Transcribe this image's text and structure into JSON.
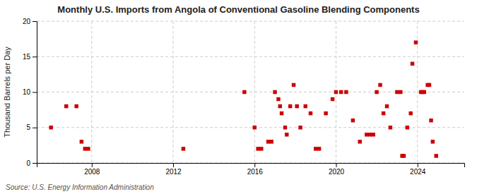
{
  "chart_data": {
    "type": "scatter",
    "title": "Monthly U.S. Imports from Angola of Conventional Gasoline Blending Components",
    "ylabel": "Thousand Barrels per Day",
    "annotation": "Source: U.S. Energy Information Administration",
    "x": [
      2006.0,
      2006.75,
      2007.25,
      2007.5,
      2007.67,
      2007.83,
      2012.5,
      2015.5,
      2016.0,
      2016.17,
      2016.33,
      2016.67,
      2016.83,
      2017.0,
      2017.17,
      2017.25,
      2017.33,
      2017.5,
      2017.58,
      2017.75,
      2017.92,
      2018.08,
      2018.25,
      2018.5,
      2018.75,
      2019.0,
      2019.17,
      2019.5,
      2019.83,
      2020.0,
      2020.25,
      2020.5,
      2020.83,
      2021.17,
      2021.5,
      2021.67,
      2021.83,
      2022.0,
      2022.17,
      2022.33,
      2022.5,
      2022.67,
      2023.0,
      2023.17,
      2023.25,
      2023.33,
      2023.5,
      2023.67,
      2023.75,
      2023.92,
      2024.17,
      2024.25,
      2024.33,
      2024.5,
      2024.58,
      2024.67,
      2024.75,
      2024.92
    ],
    "values": [
      5,
      8,
      8,
      3,
      2,
      2,
      2,
      10,
      5,
      2,
      2,
      3,
      3,
      10,
      9,
      8,
      7,
      5,
      4,
      8,
      11,
      8,
      5,
      8,
      7,
      2,
      2,
      7,
      9,
      10,
      10,
      10,
      6,
      3,
      4,
      4,
      4,
      10,
      11,
      7,
      8,
      5,
      10,
      10,
      1,
      1,
      5,
      7,
      14,
      17,
      10,
      10,
      10,
      11,
      11,
      6,
      3,
      1
    ],
    "color": "#cc0000",
    "marker": "square",
    "xlim": [
      2005.3,
      2026.3
    ],
    "ylim": [
      0,
      20
    ],
    "xticks": [
      2008,
      2012,
      2016,
      2020,
      2024
    ],
    "yticks": [
      0,
      5,
      10,
      15,
      20
    ],
    "grid": true
  }
}
